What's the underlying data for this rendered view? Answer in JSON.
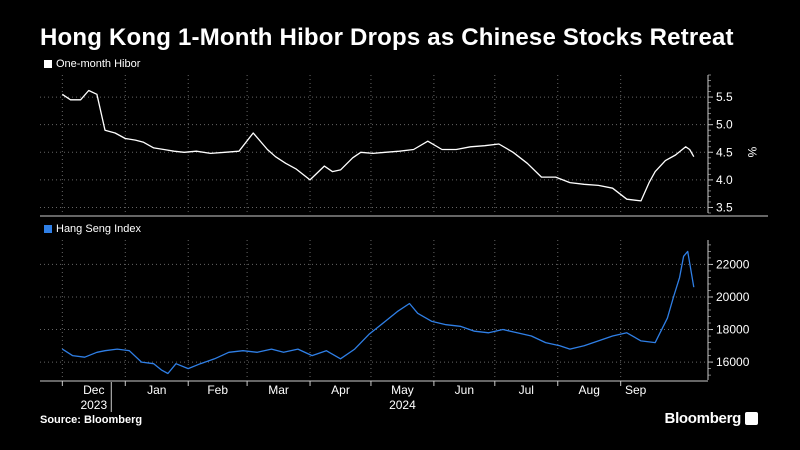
{
  "title": "Hong Kong 1-Month Hibor Drops as Chinese Stocks Retreat",
  "source": "Source: Bloomberg",
  "brand": "Bloomberg",
  "colors": {
    "hibor": "#ffffff",
    "hsi": "#2f7fe6",
    "grid": "#666666",
    "background": "#000000"
  },
  "chart_data": [
    {
      "type": "line",
      "panel": "top",
      "series": [
        {
          "name": "One-month Hibor",
          "x": [
            "2023-12-01",
            "2023-12-05",
            "2023-12-10",
            "2023-12-14",
            "2023-12-18",
            "2023-12-22",
            "2023-12-27",
            "2024-01-01",
            "2024-01-06",
            "2024-01-10",
            "2024-01-15",
            "2024-01-20",
            "2024-01-25",
            "2024-01-30",
            "2024-02-05",
            "2024-02-12",
            "2024-02-19",
            "2024-02-26",
            "2024-03-04",
            "2024-03-11",
            "2024-03-15",
            "2024-03-20",
            "2024-03-25",
            "2024-04-01",
            "2024-04-08",
            "2024-04-12",
            "2024-04-16",
            "2024-04-22",
            "2024-04-26",
            "2024-05-02",
            "2024-05-08",
            "2024-05-15",
            "2024-05-22",
            "2024-05-29",
            "2024-06-05",
            "2024-06-12",
            "2024-06-19",
            "2024-06-26",
            "2024-07-03",
            "2024-07-10",
            "2024-07-17",
            "2024-07-24",
            "2024-07-31",
            "2024-08-07",
            "2024-08-14",
            "2024-08-21",
            "2024-08-28",
            "2024-09-04",
            "2024-09-11",
            "2024-09-15",
            "2024-09-18",
            "2024-09-23",
            "2024-09-28",
            "2024-10-03",
            "2024-10-05",
            "2024-10-07"
          ],
          "y": [
            5.55,
            5.45,
            5.45,
            5.62,
            5.55,
            4.9,
            4.85,
            4.75,
            4.72,
            4.68,
            4.58,
            4.55,
            4.52,
            4.5,
            4.52,
            4.48,
            4.5,
            4.52,
            4.85,
            4.55,
            4.42,
            4.3,
            4.2,
            4.0,
            4.25,
            4.15,
            4.18,
            4.4,
            4.5,
            4.48,
            4.5,
            4.52,
            4.55,
            4.7,
            4.55,
            4.55,
            4.6,
            4.62,
            4.65,
            4.5,
            4.3,
            4.05,
            4.05,
            3.95,
            3.92,
            3.9,
            3.85,
            3.65,
            3.62,
            3.95,
            4.15,
            4.35,
            4.45,
            4.6,
            4.55,
            4.42
          ]
        }
      ],
      "yticks": [
        3.5,
        4.0,
        4.5,
        5.0,
        5.5
      ],
      "tick_labels": [
        "3.5",
        "4.0",
        "4.5",
        "5.0",
        "5.5"
      ],
      "ylim": [
        3.4,
        5.9
      ],
      "unit": "%",
      "grid": true,
      "legend_placement": "top-left"
    },
    {
      "type": "line",
      "panel": "bottom",
      "series": [
        {
          "name": "Hang Seng Index",
          "x": [
            "2023-12-01",
            "2023-12-06",
            "2023-12-12",
            "2023-12-18",
            "2023-12-22",
            "2023-12-28",
            "2024-01-03",
            "2024-01-09",
            "2024-01-15",
            "2024-01-19",
            "2024-01-22",
            "2024-01-26",
            "2024-02-01",
            "2024-02-07",
            "2024-02-14",
            "2024-02-21",
            "2024-02-28",
            "2024-03-06",
            "2024-03-13",
            "2024-03-19",
            "2024-03-26",
            "2024-04-02",
            "2024-04-09",
            "2024-04-16",
            "2024-04-23",
            "2024-04-30",
            "2024-05-08",
            "2024-05-14",
            "2024-05-20",
            "2024-05-24",
            "2024-05-31",
            "2024-06-07",
            "2024-06-14",
            "2024-06-21",
            "2024-06-28",
            "2024-07-05",
            "2024-07-12",
            "2024-07-19",
            "2024-07-26",
            "2024-08-02",
            "2024-08-07",
            "2024-08-14",
            "2024-08-21",
            "2024-08-28",
            "2024-09-04",
            "2024-09-11",
            "2024-09-18",
            "2024-09-24",
            "2024-09-27",
            "2024-09-30",
            "2024-10-02",
            "2024-10-04",
            "2024-10-07"
          ],
          "y": [
            16800,
            16400,
            16300,
            16600,
            16700,
            16800,
            16700,
            16000,
            15900,
            15500,
            15300,
            15900,
            15600,
            15900,
            16200,
            16600,
            16700,
            16600,
            16800,
            16600,
            16800,
            16400,
            16700,
            16200,
            16800,
            17700,
            18500,
            19100,
            19600,
            19000,
            18500,
            18300,
            18200,
            17900,
            17800,
            18000,
            17800,
            17600,
            17200,
            17000,
            16800,
            17000,
            17300,
            17600,
            17800,
            17300,
            17200,
            18700,
            20000,
            21200,
            22500,
            22800,
            20600
          ]
        }
      ],
      "yticks": [
        16000,
        18000,
        20000,
        22000
      ],
      "tick_labels": [
        "16000",
        "18000",
        "20000",
        "22000"
      ],
      "ylim": [
        14900,
        23500
      ],
      "grid": true,
      "legend_placement": "top-left"
    }
  ],
  "x_axis": {
    "domain": [
      "2023-11-20",
      "2024-10-14"
    ],
    "months": [
      {
        "label": "Dec",
        "date": "2023-12-01"
      },
      {
        "label": "Jan",
        "date": "2024-01-01"
      },
      {
        "label": "Feb",
        "date": "2024-02-01"
      },
      {
        "label": "Mar",
        "date": "2024-03-01"
      },
      {
        "label": "Apr",
        "date": "2024-04-01"
      },
      {
        "label": "May",
        "date": "2024-05-01"
      },
      {
        "label": "Jun",
        "date": "2024-06-01"
      },
      {
        "label": "Jul",
        "date": "2024-07-01"
      },
      {
        "label": "Aug",
        "date": "2024-08-01"
      },
      {
        "label": "Sep",
        "date": "2024-09-01"
      }
    ],
    "years": [
      {
        "label": "2023",
        "date": "2023-12-01"
      },
      {
        "label": "2024",
        "date": "2024-05-01"
      }
    ]
  }
}
